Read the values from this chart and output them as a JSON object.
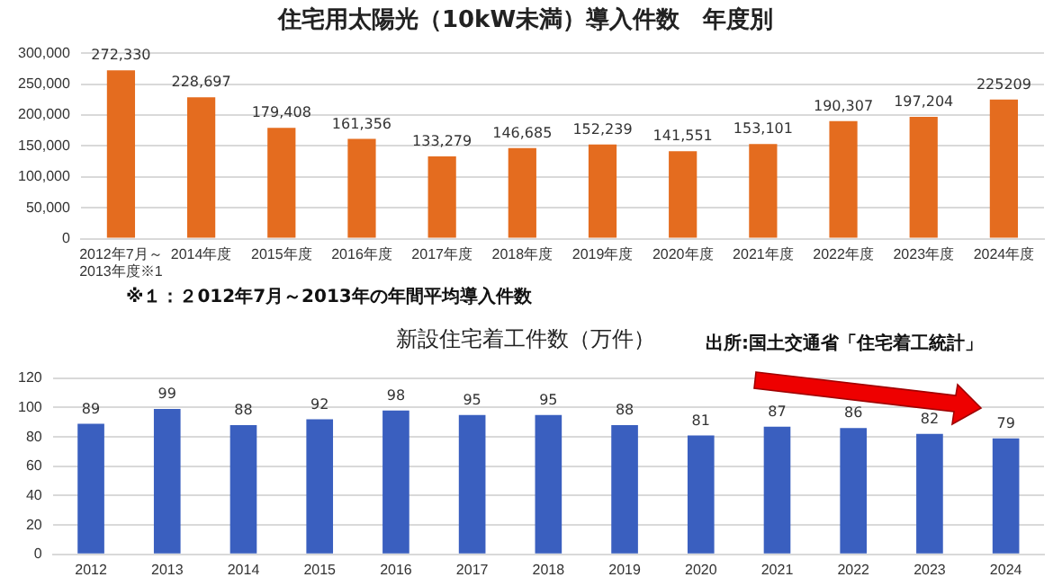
{
  "chart_data": [
    {
      "type": "bar",
      "title": "住宅用太陽光（10kW未満）導入件数　年度別",
      "categories": [
        "2012年7月～2013年度※1",
        "2014年度",
        "2015年度",
        "2016年度",
        "2017年度",
        "2018年度",
        "2019年度",
        "2020年度",
        "2021年度",
        "2022年度",
        "2023年度",
        "2024年度"
      ],
      "values": [
        272330,
        228697,
        179408,
        161356,
        133279,
        146685,
        152239,
        141551,
        153101,
        190307,
        197204,
        225209
      ],
      "value_labels": [
        "272,330",
        "228,697",
        "179,408",
        "161,356",
        "133,279",
        "146,685",
        "152,239",
        "141,551",
        "153,101",
        "190,307",
        "197,204",
        "225209"
      ],
      "color": "#e46c1f",
      "ylim": [
        0,
        300000
      ],
      "yticks": [
        {
          "value": 0,
          "label": "0"
        },
        {
          "value": 50000,
          "label": "50,000"
        },
        {
          "value": 100000,
          "label": "100,000"
        },
        {
          "value": 150000,
          "label": "150,000"
        },
        {
          "value": 200000,
          "label": "200,000"
        },
        {
          "value": 250000,
          "label": "250,000"
        },
        {
          "value": 300000,
          "label": "300,000"
        }
      ],
      "grid": "y",
      "annotations": [
        "※１：２012年7月～2013年の年間平均導入件数"
      ]
    },
    {
      "type": "bar",
      "title": "新設住宅着工件数（万件）",
      "categories": [
        "2012",
        "2013",
        "2014",
        "2015",
        "2016",
        "2017",
        "2018",
        "2019",
        "2020",
        "2021",
        "2022",
        "2023",
        "2024"
      ],
      "values": [
        89,
        99,
        88,
        92,
        98,
        95,
        95,
        88,
        81,
        87,
        86,
        82,
        79
      ],
      "color": "#3a5fbf",
      "ylim": [
        0,
        120
      ],
      "yticks": [
        0,
        20,
        40,
        60,
        80,
        100,
        120
      ],
      "grid": "y",
      "data_labels": true,
      "annotations": [
        "出所:国土交通省「住宅着工統計」"
      ]
    }
  ]
}
